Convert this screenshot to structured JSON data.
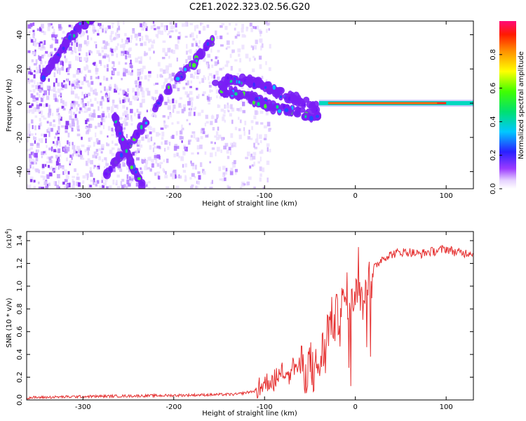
{
  "title": "C2E1.2022.323.02.56.G20",
  "chart_data": [
    {
      "type": "heatmap",
      "xlabel": "Height of straight line (km)",
      "ylabel": "Frequency (Hz)",
      "xlim": [
        -362,
        130
      ],
      "ylim": [
        -50,
        48
      ],
      "x_ticks": [
        -300,
        -200,
        -100,
        0,
        100
      ],
      "y_ticks": [
        -40,
        -20,
        0,
        20,
        40
      ],
      "colorbar": {
        "label": "Normalized spectral amplitude",
        "range": [
          0,
          1
        ],
        "ticks": [
          0.0,
          0.2,
          0.4,
          0.6,
          0.8
        ]
      },
      "features": [
        {
          "name": "rising-track",
          "x": [
            -275,
            -255,
            -235,
            -215,
            -195,
            -180,
            -165,
            -155
          ],
          "y": [
            -42,
            -28,
            -14,
            2,
            15,
            22,
            32,
            38
          ]
        },
        {
          "name": "upper-track",
          "x": [
            -345,
            -330,
            -315,
            -300,
            -288
          ],
          "y": [
            14,
            26,
            38,
            46,
            50
          ]
        },
        {
          "name": "falling-track",
          "x": [
            -265,
            -255,
            -245,
            -235
          ],
          "y": [
            -8,
            -24,
            -38,
            -48
          ]
        },
        {
          "name": "wavy-band",
          "x": [
            -155,
            -130,
            -110,
            -95,
            -80,
            -65,
            -50,
            -40
          ],
          "y": [
            12,
            14,
            12,
            9,
            5,
            3,
            -1,
            -3
          ]
        },
        {
          "name": "lower-band",
          "x": [
            -150,
            -130,
            -110,
            -95,
            -80,
            -65,
            -50,
            -40
          ],
          "y": [
            8,
            6,
            2,
            -2,
            -3,
            -5,
            -7,
            -8
          ]
        },
        {
          "name": "flat-line",
          "x": [
            -40,
            130
          ],
          "y": [
            0,
            0
          ]
        }
      ]
    },
    {
      "type": "line",
      "xlabel": "Height of straight line (km)",
      "ylabel": "SNR (10 * v/v)",
      "y_multiplier": "(x10",
      "y_multiplier_exp": "4",
      "xlim": [
        -362,
        130
      ],
      "ylim": [
        0,
        1.48
      ],
      "x_ticks": [
        -300,
        -200,
        -100,
        0,
        100
      ],
      "y_ticks": [
        0.0,
        0.2,
        0.4,
        0.6,
        0.8,
        1.0,
        1.2,
        1.4
      ],
      "line_color": "#e53030",
      "series": [
        {
          "x": [
            -362,
            -300,
            -200,
            -130,
            -110,
            -100,
            -90,
            -80,
            -70,
            -60,
            -50,
            -45,
            -40,
            -35,
            -30,
            -25,
            -20,
            -15,
            -10,
            -5,
            0,
            5,
            10,
            15,
            20,
            25,
            30,
            40,
            50,
            60,
            70,
            80,
            90,
            100,
            110,
            120,
            130
          ],
          "y": [
            0.02,
            0.03,
            0.04,
            0.05,
            0.08,
            0.15,
            0.18,
            0.25,
            0.3,
            0.28,
            0.32,
            0.25,
            0.3,
            0.45,
            0.65,
            0.7,
            0.72,
            0.8,
            0.9,
            0.95,
            0.98,
            1.0,
            1.05,
            1.1,
            1.15,
            1.2,
            1.25,
            1.28,
            1.3,
            1.3,
            1.28,
            1.3,
            1.31,
            1.33,
            1.3,
            1.29,
            1.3
          ]
        }
      ]
    }
  ]
}
